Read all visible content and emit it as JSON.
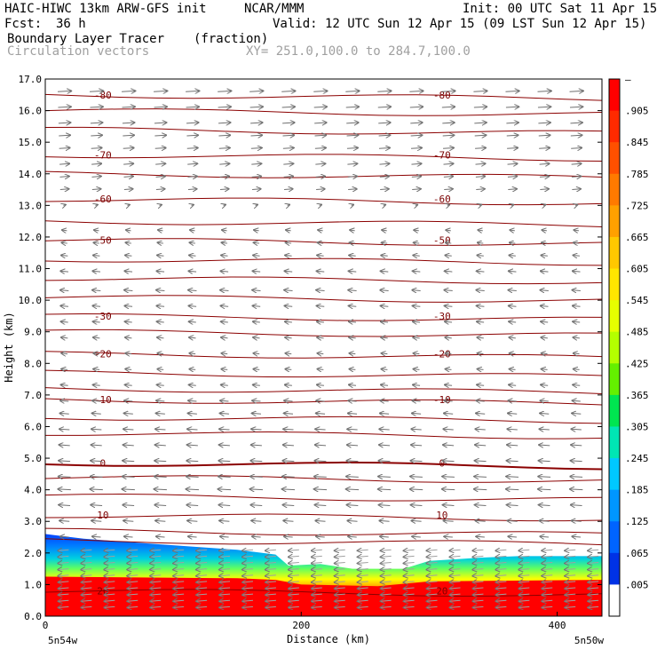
{
  "header": {
    "model": "HAIC-HIWC 13km ARW-GFS init",
    "org": "NCAR/MMM",
    "init": "Init: 00 UTC Sat 11 Apr 15",
    "fcst_label": "Fcst:",
    "fcst_value": "36 h",
    "valid": "Valid: 12 UTC Sun 12 Apr 15 (09 LST Sun 12 Apr 15)",
    "field": "Boundary Layer Tracer",
    "field_units": "(fraction)",
    "vectors": "Circulation vectors",
    "xy": "XY= 251.0,100.0 to 284.7,100.0"
  },
  "chart_data": {
    "type": "heatmap",
    "xlabel": "Distance (km)",
    "ylabel": "Height (km)",
    "xlim": [
      0,
      435
    ],
    "ylim": [
      0,
      17
    ],
    "x_ticks": [
      0,
      200,
      400
    ],
    "y_ticks": [
      "0.0",
      "1.0",
      "2.0",
      "3.0",
      "4.0",
      "5.0",
      "6.0",
      "7.0",
      "8.0",
      "9.0",
      "10.0",
      "11.0",
      "12.0",
      "13.0",
      "14.0",
      "15.0",
      "16.0",
      "17.0"
    ],
    "x_end_labels": [
      "5n54w",
      "5n50w"
    ],
    "colorbar": {
      "labels": [
        "–",
        ".905",
        ".845",
        ".785",
        ".725",
        ".665",
        ".605",
        ".545",
        ".485",
        ".425",
        ".365",
        ".305",
        ".245",
        ".185",
        ".125",
        ".065",
        ".005"
      ],
      "colors": [
        "#ff0000",
        "#ff2a00",
        "#ff5000",
        "#ff7a00",
        "#ffa000",
        "#ffc800",
        "#ffe600",
        "#e6ff00",
        "#b4ff00",
        "#64f000",
        "#00e650",
        "#00e6b4",
        "#00c8ff",
        "#0096ff",
        "#0064ff",
        "#0032e6",
        "#ffffff"
      ]
    },
    "tracer_top_km": [
      [
        0,
        2.6
      ],
      [
        30,
        2.45
      ],
      [
        80,
        2.3
      ],
      [
        150,
        2.1
      ],
      [
        180,
        1.95
      ],
      [
        190,
        1.6
      ],
      [
        215,
        1.65
      ],
      [
        240,
        1.5
      ],
      [
        280,
        1.5
      ],
      [
        300,
        1.75
      ],
      [
        340,
        1.85
      ],
      [
        370,
        1.9
      ],
      [
        435,
        1.9
      ]
    ],
    "temperature_contours": [
      {
        "label": "-80",
        "y_km": 16.5
      },
      {
        "label": "-70",
        "y_km": 14.6
      },
      {
        "label": "-60",
        "y_km": 13.2
      },
      {
        "label": "-50",
        "y_km": 11.9
      },
      {
        "label": "-30",
        "y_km": 9.5
      },
      {
        "label": "-20",
        "y_km": 8.3
      },
      {
        "label": "-10",
        "y_km": 6.85
      },
      {
        "label": "0",
        "y_km": 4.85
      },
      {
        "label": "10",
        "y_km": 3.2
      },
      {
        "label": "20",
        "y_km": 0.8
      }
    ],
    "extra_contours_km": [
      16.0,
      15.4,
      14.0,
      12.5,
      11.3,
      10.7,
      10.1,
      9.0,
      7.7,
      7.2,
      6.3,
      5.8,
      4.4,
      3.8,
      2.7,
      2.4
    ],
    "wind_rows_km": [
      16.6,
      16.1,
      15.6,
      15.2,
      14.8,
      14.3,
      13.9,
      13.5,
      13.0,
      12.2,
      11.8,
      11.4,
      10.9,
      10.3,
      9.8,
      9.3,
      8.8,
      8.3,
      7.8,
      7.3,
      6.8,
      6.4,
      5.9,
      5.4,
      4.9,
      4.4,
      4.0,
      3.5,
      3.0,
      2.5
    ],
    "wind_columns_km": [
      15,
      40,
      65,
      90,
      115,
      140,
      165,
      190,
      215,
      240,
      265,
      290,
      315,
      340,
      365,
      390,
      415
    ],
    "wind_speed_by_height": [
      {
        "z": 17,
        "u": 1.0
      },
      {
        "z": 13.5,
        "u": 0.6
      },
      {
        "z": 12.5,
        "u": -0.3
      },
      {
        "z": 10.5,
        "u": -0.6
      },
      {
        "z": 8,
        "u": -0.4
      },
      {
        "z": 6,
        "u": -0.7
      },
      {
        "z": 4,
        "u": -0.9
      },
      {
        "z": 2.5,
        "u": -0.6
      }
    ]
  }
}
